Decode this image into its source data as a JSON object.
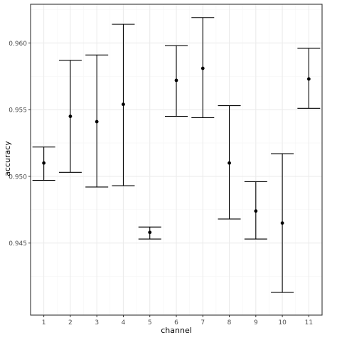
{
  "chart_data": {
    "type": "errorbar",
    "xlabel": "channel",
    "ylabel": "accuracy",
    "x_ticks": [
      "1",
      "2",
      "3",
      "4",
      "5",
      "6",
      "7",
      "8",
      "9",
      "10",
      "11"
    ],
    "y_ticks": [
      "0.945",
      "0.950",
      "0.955",
      "0.960"
    ],
    "y_tick_values": [
      0.945,
      0.95,
      0.955,
      0.96
    ],
    "xlim": [
      0.5,
      11.5
    ],
    "ylim": [
      0.9396,
      0.9629
    ],
    "grid": true,
    "theme": "black-and-white",
    "points": [
      {
        "x": 1,
        "y": 0.951,
        "lower": 0.9497,
        "upper": 0.9522
      },
      {
        "x": 2,
        "y": 0.9545,
        "lower": 0.9503,
        "upper": 0.9587
      },
      {
        "x": 3,
        "y": 0.9541,
        "lower": 0.9492,
        "upper": 0.9591
      },
      {
        "x": 4,
        "y": 0.9554,
        "lower": 0.9493,
        "upper": 0.9614
      },
      {
        "x": 5,
        "y": 0.9458,
        "lower": 0.9453,
        "upper": 0.9462
      },
      {
        "x": 6,
        "y": 0.9572,
        "lower": 0.9545,
        "upper": 0.9598
      },
      {
        "x": 7,
        "y": 0.9581,
        "lower": 0.9544,
        "upper": 0.9619
      },
      {
        "x": 8,
        "y": 0.951,
        "lower": 0.9468,
        "upper": 0.9553
      },
      {
        "x": 9,
        "y": 0.9474,
        "lower": 0.9453,
        "upper": 0.9496
      },
      {
        "x": 10,
        "y": 0.9465,
        "lower": 0.9413,
        "upper": 0.9517
      },
      {
        "x": 11,
        "y": 0.9573,
        "lower": 0.9551,
        "upper": 0.9596
      }
    ],
    "colors": {
      "background": "#ffffff",
      "panel_border": "#333333",
      "major_grid": "#ebebeb",
      "minor_grid": "#f5f5f5",
      "mark": "#000000",
      "tick_text": "#4d4d4d",
      "axis_title": "#000000"
    }
  }
}
